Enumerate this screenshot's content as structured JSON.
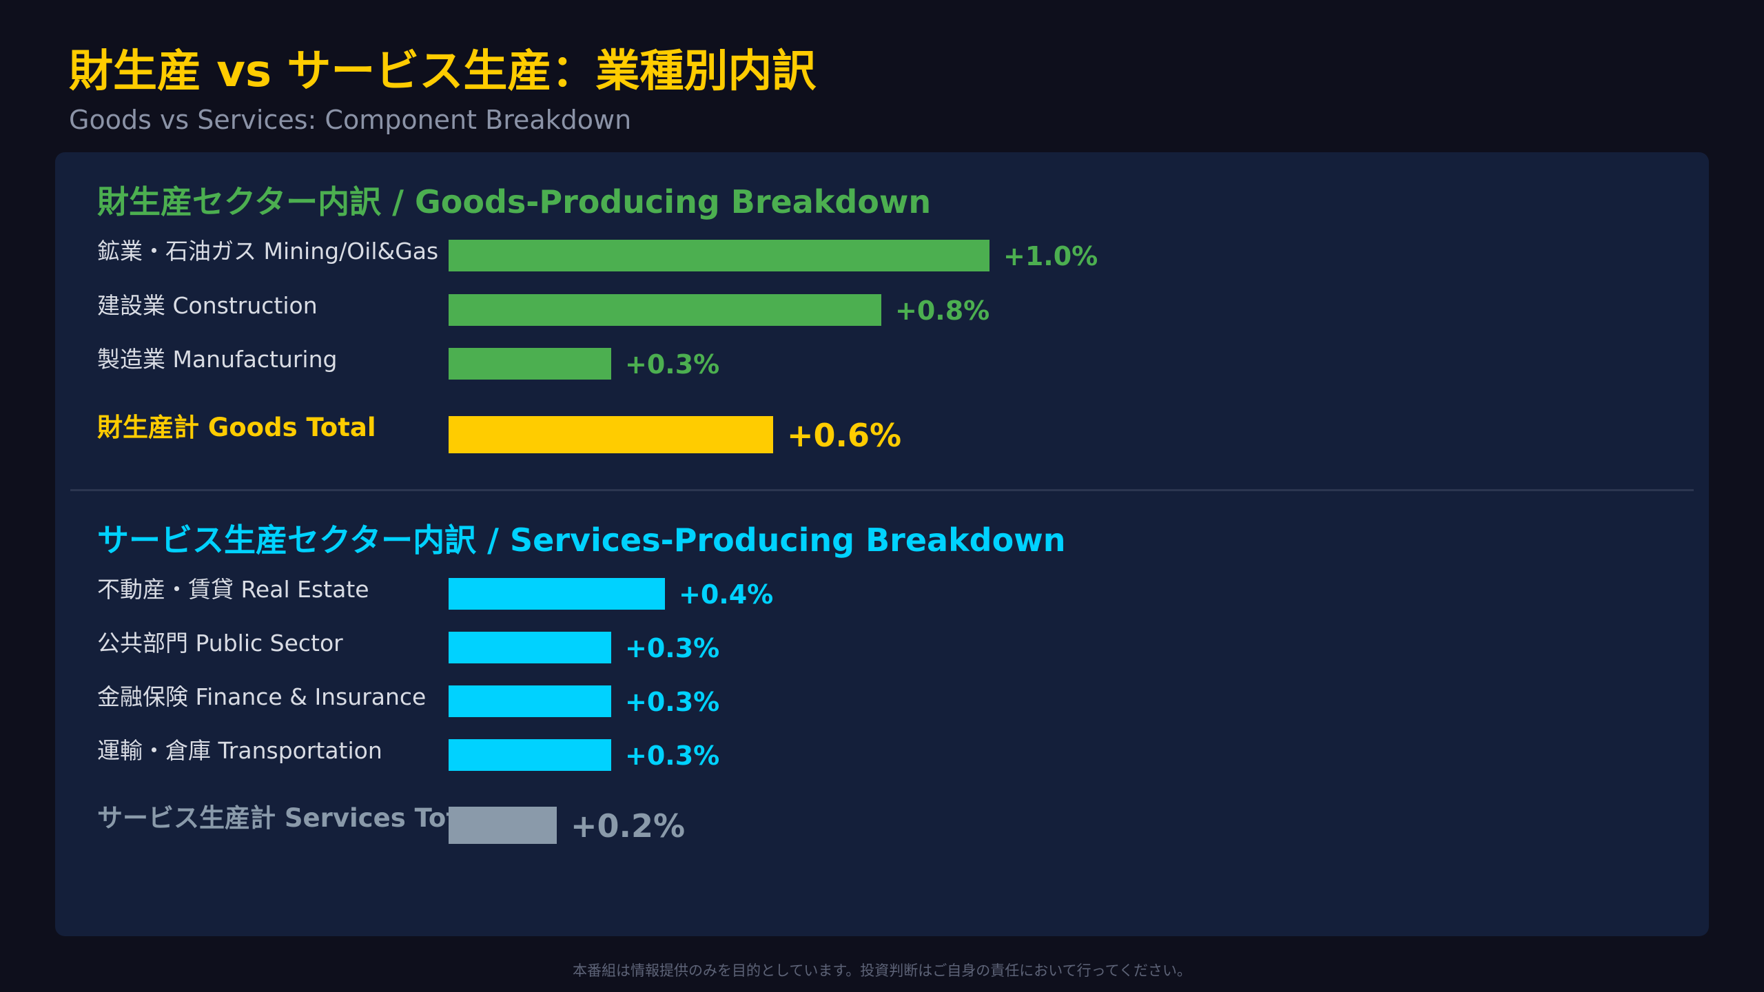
{
  "title": "財生産 vs サービス生産：業種別内訳",
  "subtitle": "Goods vs Services: Component Breakdown",
  "disclaimer": "本番組は情報提供のみを目的としています。投資判断はご自身の責任において行ってください。",
  "colors": {
    "goods": "#4caf50",
    "goods_total": "#ffcc00",
    "services": "#00d2ff",
    "services_total": "#8a9aaa"
  },
  "chart_data": {
    "type": "bar",
    "orientation": "horizontal",
    "unit": "%",
    "xlim": [
      0,
      1.0
    ],
    "groups": [
      {
        "title": "財生産セクター内訳 / Goods-Producing Breakdown",
        "rows": [
          {
            "label": "鉱業・石油ガス Mining/Oil&Gas",
            "value": 1.0,
            "value_label": "+1.0%"
          },
          {
            "label": "建設業 Construction",
            "value": 0.8,
            "value_label": "+0.8%"
          },
          {
            "label": "製造業 Manufacturing",
            "value": 0.3,
            "value_label": "+0.3%"
          }
        ],
        "total": {
          "label": "財生産計 Goods Total",
          "value": 0.6,
          "value_label": "+0.6%"
        }
      },
      {
        "title": "サービス生産セクター内訳 / Services-Producing Breakdown",
        "rows": [
          {
            "label": "不動産・賃貸 Real Estate",
            "value": 0.4,
            "value_label": "+0.4%"
          },
          {
            "label": "公共部門 Public Sector",
            "value": 0.3,
            "value_label": "+0.3%"
          },
          {
            "label": "金融保険 Finance & Insurance",
            "value": 0.3,
            "value_label": "+0.3%"
          },
          {
            "label": "運輸・倉庫 Transportation",
            "value": 0.3,
            "value_label": "+0.3%"
          }
        ],
        "total": {
          "label": "サービス生産計 Services Total",
          "value": 0.2,
          "value_label": "+0.2%"
        }
      }
    ]
  }
}
